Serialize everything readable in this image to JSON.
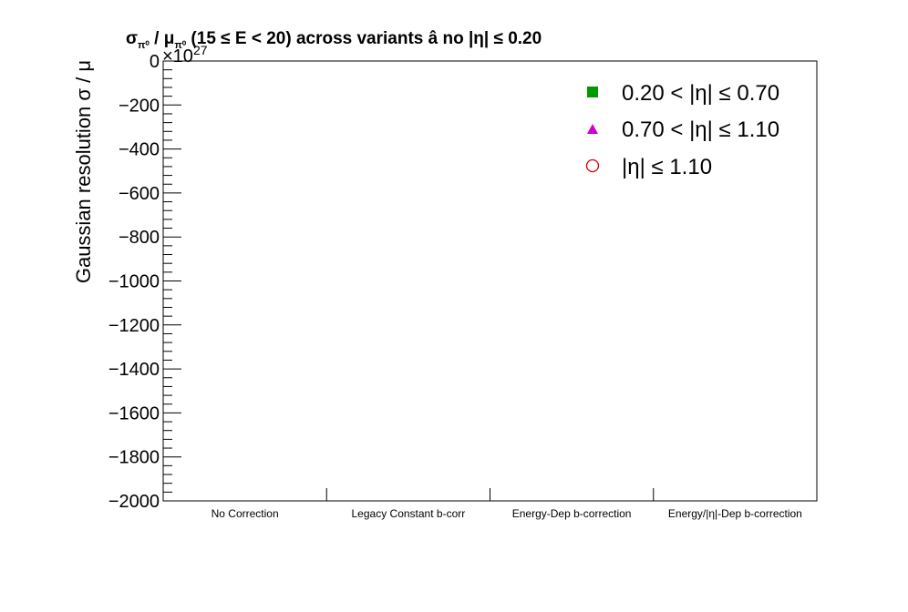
{
  "chart_data": {
    "type": "scatter",
    "title": "σπ⁰ / μπ⁰ (15 ≤ E < 20) across variants  â  no |η| ≤ 0.20",
    "title_parts": {
      "sigma": "σ",
      "pi_sub": "π⁰",
      "slash": " / ",
      "mu": "μ",
      "rest": " (15 ≤ E < 20) across variants  â  no |η| ≤ 0.20"
    },
    "ylabel": "Gaussian resolution  σ / μ",
    "exponent_label": "×10",
    "exponent_value": "27",
    "ylim": [
      -2000,
      0
    ],
    "yticks": [
      "0",
      "−200",
      "−400",
      "−600",
      "−800",
      "−1000",
      "−1200",
      "−1400",
      "−1600",
      "−1800",
      "−2000"
    ],
    "ytick_values": [
      0,
      -200,
      -400,
      -600,
      -800,
      -1000,
      -1200,
      -1400,
      -1600,
      -1800,
      -2000
    ],
    "categories": [
      "No Correction",
      "Legacy Constant b-corr",
      "Energy-Dep b-correction",
      "Energy/|η|-Dep b-correction"
    ],
    "legend_position": "top-right",
    "series": [
      {
        "name": "0.20 < |η| ≤ 0.70",
        "marker": "square",
        "color": "#009900",
        "values": []
      },
      {
        "name": "0.70 < |η| ≤ 1.10",
        "marker": "triangle",
        "color": "#cc00cc",
        "values": []
      },
      {
        "name": "|η| ≤ 1.10",
        "marker": "open-circle",
        "color": "#cc0000",
        "values": []
      }
    ]
  }
}
